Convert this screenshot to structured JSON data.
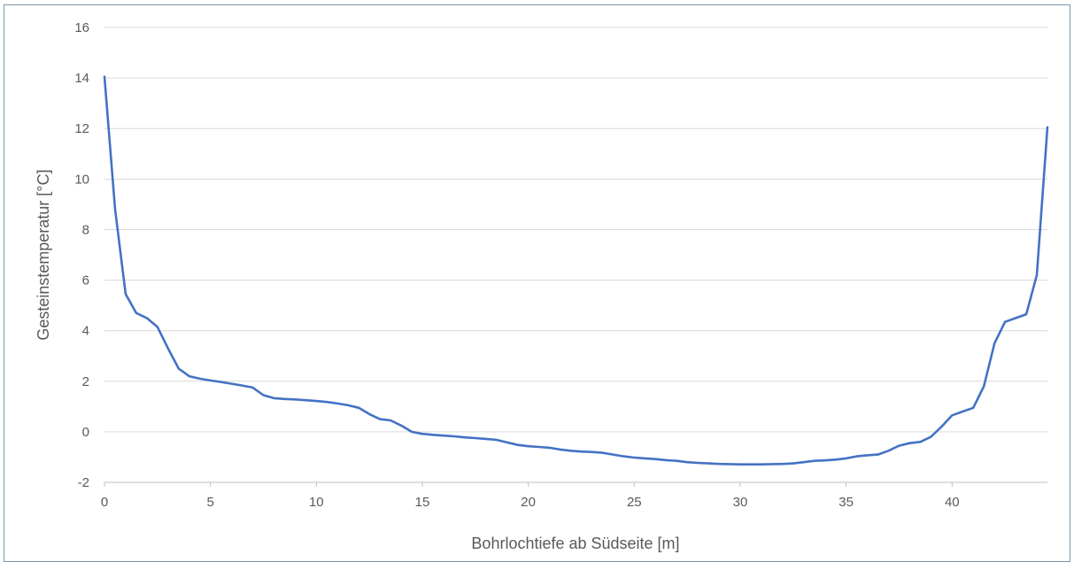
{
  "chart_data": {
    "type": "line",
    "title": "",
    "xlabel": "Bohrlochtiefe ab Südseite [m]",
    "ylabel": "Gesteinstemperatur [°C]",
    "xlim": [
      0,
      44.5
    ],
    "ylim": [
      -2,
      16
    ],
    "x_ticks": [
      "0",
      "5",
      "10",
      "15",
      "20",
      "25",
      "30",
      "35",
      "40"
    ],
    "y_ticks": [
      "-2",
      "0",
      "2",
      "4",
      "6",
      "8",
      "10",
      "12",
      "14",
      "16"
    ],
    "grid": "horizontal",
    "line_color": "#4472c4",
    "series": [
      {
        "x": [
          0,
          0.5,
          1,
          1.5,
          2,
          2.5,
          3,
          3.5,
          4,
          4.5,
          5,
          5.5,
          6,
          6.5,
          7,
          7.5,
          8,
          8.5,
          9,
          9.5,
          10,
          10.5,
          11,
          11.5,
          12,
          12.5,
          13,
          13.5,
          14,
          14.5,
          15,
          15.5,
          16,
          16.5,
          17,
          17.5,
          18,
          18.5,
          19,
          19.5,
          20,
          20.5,
          21,
          21.5,
          22,
          22.5,
          23,
          23.5,
          24,
          24.5,
          25,
          25.5,
          26,
          26.5,
          27,
          27.5,
          28,
          28.5,
          29,
          29.5,
          30,
          30.5,
          31,
          31.5,
          32,
          32.5,
          33,
          33.5,
          34,
          34.5,
          35,
          35.5,
          36,
          36.5,
          37,
          37.5,
          38,
          38.5,
          39,
          39.5,
          40,
          40.5,
          41,
          41.5,
          42,
          42.5,
          43,
          43.5,
          44,
          44.5
        ],
        "y": [
          14.05,
          8.8,
          5.45,
          4.7,
          4.5,
          4.15,
          3.3,
          2.5,
          2.2,
          2.1,
          2.03,
          1.97,
          1.9,
          1.83,
          1.75,
          1.45,
          1.33,
          1.3,
          1.28,
          1.25,
          1.22,
          1.18,
          1.12,
          1.05,
          0.95,
          0.7,
          0.5,
          0.45,
          0.25,
          0.0,
          -0.08,
          -0.12,
          -0.15,
          -0.18,
          -0.22,
          -0.25,
          -0.28,
          -0.32,
          -0.42,
          -0.52,
          -0.57,
          -0.6,
          -0.63,
          -0.7,
          -0.75,
          -0.78,
          -0.8,
          -0.83,
          -0.9,
          -0.97,
          -1.02,
          -1.05,
          -1.08,
          -1.12,
          -1.15,
          -1.2,
          -1.23,
          -1.25,
          -1.27,
          -1.28,
          -1.29,
          -1.29,
          -1.29,
          -1.28,
          -1.27,
          -1.25,
          -1.2,
          -1.15,
          -1.13,
          -1.1,
          -1.05,
          -0.97,
          -0.93,
          -0.9,
          -0.75,
          -0.55,
          -0.45,
          -0.4,
          -0.2,
          0.2,
          0.65,
          0.8,
          0.95,
          1.8,
          3.5,
          4.35,
          4.5,
          4.65,
          6.2,
          12.05
        ]
      }
    ]
  }
}
